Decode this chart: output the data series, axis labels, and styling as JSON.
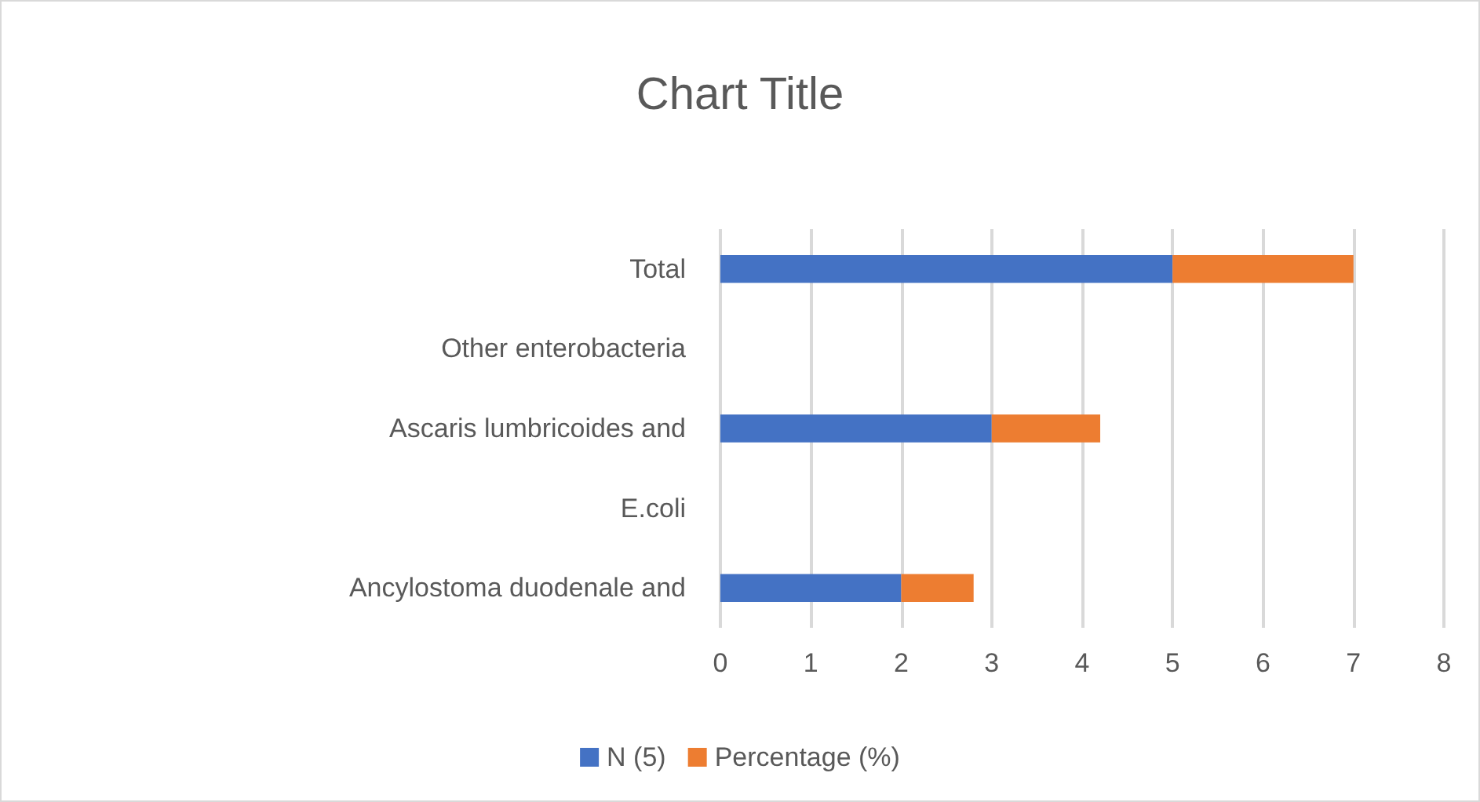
{
  "chart_data": {
    "type": "bar",
    "title": "Chart Title",
    "orientation": "horizontal",
    "stacked": true,
    "categories": [
      "Total",
      "Other enterobacteria",
      "Ascaris lumbricoides and",
      "E.coli",
      "Ancylostoma duodenale and"
    ],
    "series": [
      {
        "name": "N (5)",
        "color": "#4472c4",
        "values": [
          5,
          null,
          3,
          null,
          2
        ]
      },
      {
        "name": "Percentage (%)",
        "color": "#ed7d31",
        "values": [
          2,
          null,
          1.2,
          null,
          0.8
        ]
      }
    ],
    "xlim": [
      0,
      8
    ],
    "xticks": [
      0,
      1,
      2,
      3,
      4,
      5,
      6,
      7,
      8
    ],
    "grid": "x",
    "legend": "bottom"
  }
}
